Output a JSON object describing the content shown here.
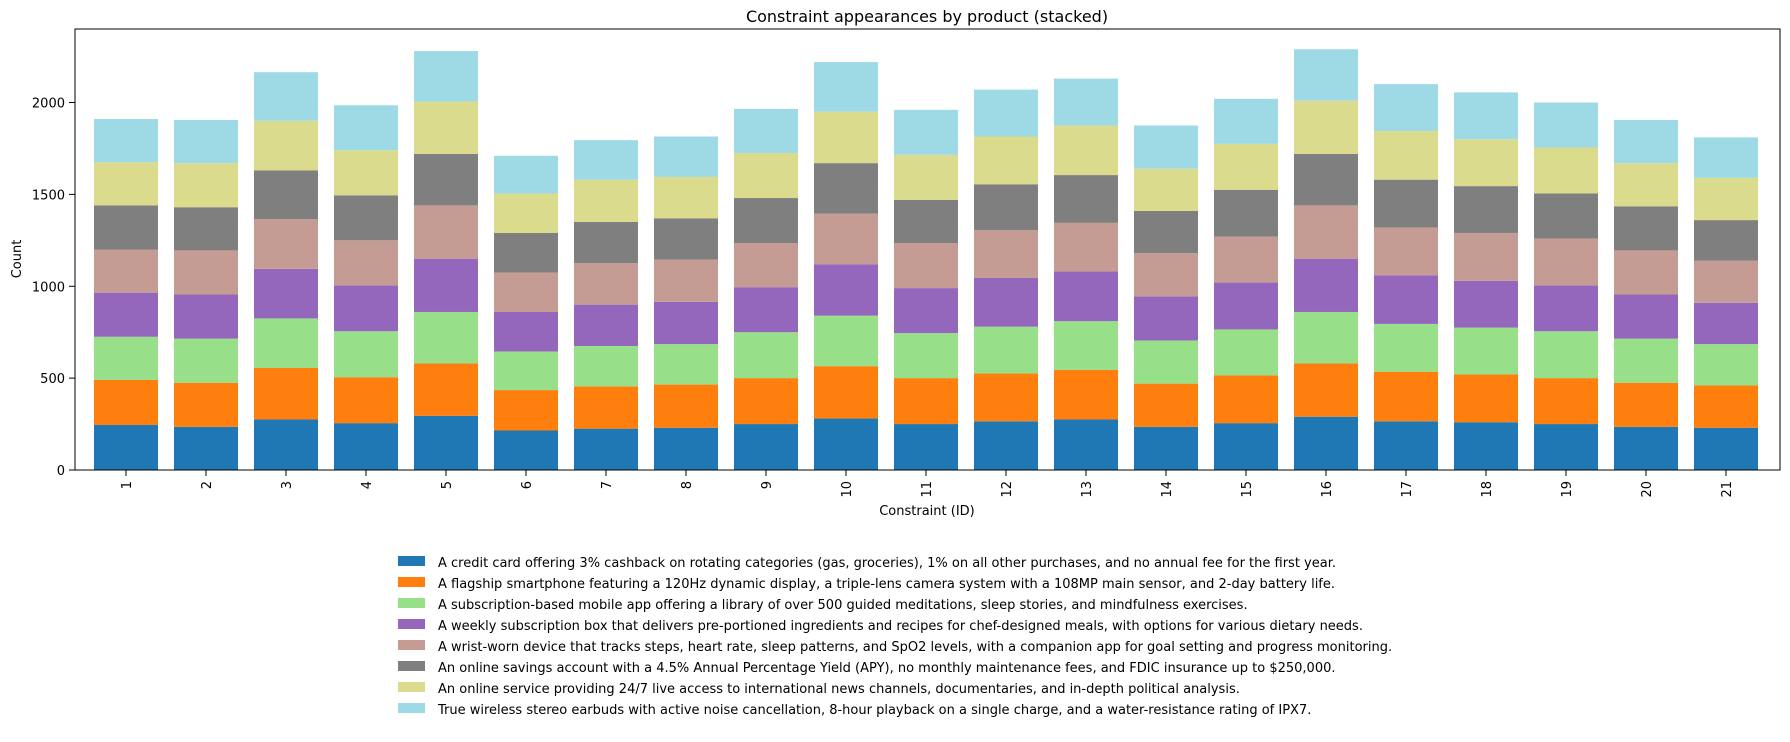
{
  "chart_data": {
    "type": "bar",
    "stacked": true,
    "title": "Constraint appearances by product (stacked)",
    "xlabel": "Constraint (ID)",
    "ylabel": "Count",
    "ylim": [
      0,
      2400
    ],
    "yticks": [
      0,
      500,
      1000,
      1500,
      2000
    ],
    "ytick_labels": [
      "0",
      "500",
      "1000",
      "1500",
      "2000"
    ],
    "categories": [
      "1",
      "2",
      "3",
      "4",
      "5",
      "6",
      "7",
      "8",
      "9",
      "10",
      "11",
      "12",
      "13",
      "14",
      "15",
      "16",
      "17",
      "18",
      "19",
      "20",
      "21"
    ],
    "legend_position": "below-center",
    "series": [
      {
        "name": "A credit card offering 3% cashback on rotating categories (gas, groceries), 1% on all other purchases, and no annual fee for the first year.",
        "color": "#1f77b4",
        "values": [
          245,
          235,
          275,
          255,
          295,
          215,
          225,
          230,
          250,
          280,
          250,
          265,
          275,
          235,
          255,
          290,
          265,
          260,
          250,
          235,
          230
        ]
      },
      {
        "name": "A flagship smartphone featuring a 120Hz dynamic display, a triple-lens camera system with a 108MP main sensor, and 2-day battery life.",
        "color": "#ff7f0e",
        "values": [
          245,
          240,
          280,
          250,
          285,
          220,
          230,
          235,
          250,
          285,
          250,
          260,
          270,
          235,
          260,
          290,
          270,
          260,
          250,
          240,
          230
        ]
      },
      {
        "name": "A subscription-based mobile app offering a library of over 500 guided meditations, sleep stories, and mindfulness exercises.",
        "color": "#98df8a",
        "values": [
          235,
          240,
          270,
          250,
          280,
          210,
          220,
          220,
          250,
          275,
          245,
          255,
          265,
          235,
          250,
          280,
          260,
          255,
          255,
          240,
          225
        ]
      },
      {
        "name": "A weekly subscription box that delivers pre-portioned ingredients and recipes for chef-designed meals, with options for various dietary needs.",
        "color": "#9467bd",
        "values": [
          240,
          240,
          270,
          250,
          290,
          215,
          225,
          230,
          245,
          280,
          245,
          265,
          270,
          240,
          255,
          290,
          265,
          255,
          250,
          240,
          225
        ]
      },
      {
        "name": "A wrist-worn device that tracks steps, heart rate, sleep patterns, and SpO2 levels, with a companion app for goal setting and progress monitoring.",
        "color": "#c49c94",
        "values": [
          235,
          240,
          270,
          245,
          290,
          215,
          225,
          230,
          240,
          275,
          245,
          260,
          265,
          235,
          250,
          290,
          260,
          260,
          255,
          240,
          230
        ]
      },
      {
        "name": "An online savings account with a 4.5% Annual Percentage Yield (APY), no monthly maintenance fees, and FDIC insurance up to $250,000.",
        "color": "#7f7f7f",
        "values": [
          240,
          235,
          265,
          245,
          280,
          215,
          225,
          225,
          245,
          275,
          235,
          250,
          260,
          230,
          255,
          280,
          260,
          255,
          245,
          240,
          220
        ]
      },
      {
        "name": "An online service providing 24/7 live access to international news channels, documentaries, and in-depth political analysis.",
        "color": "#dbdb8d",
        "values": [
          235,
          240,
          270,
          245,
          285,
          215,
          230,
          225,
          245,
          280,
          245,
          260,
          270,
          230,
          250,
          290,
          265,
          255,
          250,
          235,
          230
        ]
      },
      {
        "name": "True wireless stereo earbuds with active noise cancellation, 8-hour playback on a single charge, and a water-resistance rating of IPX7.",
        "color": "#9edae5",
        "values": [
          235,
          235,
          265,
          245,
          275,
          205,
          215,
          220,
          240,
          270,
          245,
          255,
          255,
          235,
          245,
          280,
          255,
          255,
          245,
          235,
          220
        ]
      }
    ]
  }
}
